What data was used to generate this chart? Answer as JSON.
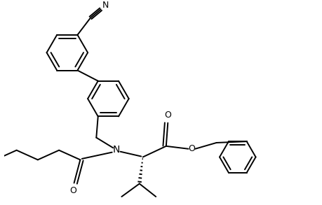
{
  "bg_color": "#ffffff",
  "line_color": "#000000",
  "line_width": 1.4,
  "font_size": 9,
  "figsize": [
    4.59,
    2.93
  ],
  "dpi": 100,
  "xlim": [
    0,
    9.18
  ],
  "ylim": [
    0,
    5.86
  ]
}
